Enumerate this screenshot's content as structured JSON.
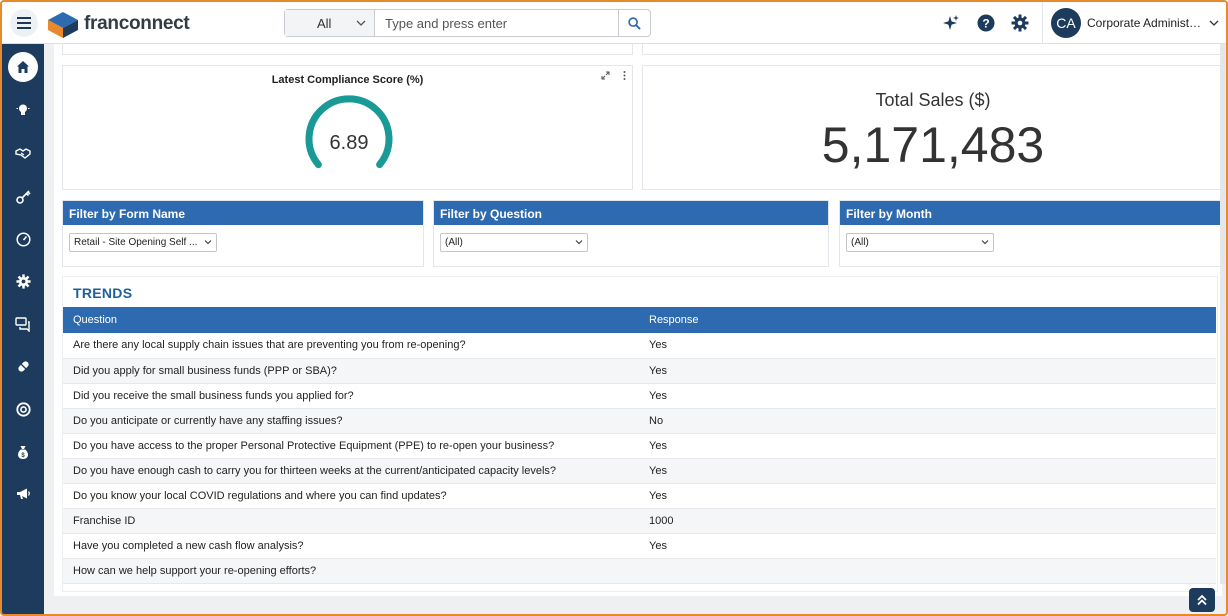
{
  "app": {
    "name": "franconnect",
    "brand_color": "#1d3b5c",
    "accent_color": "#2e6ab0",
    "highlight_color": "#e8892b"
  },
  "search": {
    "scope": "All",
    "placeholder": "Type and press enter"
  },
  "header_icons": [
    "sparkle-icon",
    "help-icon",
    "gear-icon"
  ],
  "user": {
    "initials": "CA",
    "name": "Corporate Administrator"
  },
  "sidebar": {
    "items": [
      {
        "name": "home-icon",
        "active": true
      },
      {
        "name": "lightbulb-icon"
      },
      {
        "name": "handshake-icon"
      },
      {
        "name": "key-icon"
      },
      {
        "name": "gauge-icon"
      },
      {
        "name": "settings-icon"
      },
      {
        "name": "chat-icon"
      },
      {
        "name": "pill-icon"
      },
      {
        "name": "lifebuoy-icon"
      },
      {
        "name": "money-bag-icon"
      },
      {
        "name": "megaphone-icon"
      }
    ]
  },
  "compliance": {
    "title": "Latest Compliance Score (%)",
    "value": "6.89",
    "gauge_color": "#1a9a96"
  },
  "sales": {
    "title": "Total Sales ($)",
    "value": "5,171,483"
  },
  "filters": [
    {
      "label": "Filter by Form Name",
      "selected": "Retail - Site Opening Self ..."
    },
    {
      "label": "Filter by Question",
      "selected": "(All)"
    },
    {
      "label": "Filter by Month",
      "selected": "(All)"
    }
  ],
  "trends": {
    "title": "TRENDS",
    "columns": [
      "Question",
      "Response"
    ],
    "rows": [
      [
        "Are there any local supply chain issues that are preventing you from re-opening?",
        "Yes"
      ],
      [
        "Did you apply for small business funds (PPP or SBA)?",
        "Yes"
      ],
      [
        "Did you receive the small business funds you applied for?",
        "Yes"
      ],
      [
        "Do you anticipate or currently have any staffing issues?",
        "No"
      ],
      [
        "Do you have access to the proper Personal Protective Equipment (PPE) to re-open your business?",
        "Yes"
      ],
      [
        "Do you have enough cash to carry you for thirteen weeks at the current/anticipated capacity levels?",
        "Yes"
      ],
      [
        "Do you know your local COVID regulations and where you can find updates?",
        "Yes"
      ],
      [
        "Franchise ID",
        "1000"
      ],
      [
        "Have you completed a new cash flow analysis?",
        "Yes"
      ],
      [
        "How can we help support your re-opening efforts?",
        ""
      ]
    ]
  }
}
